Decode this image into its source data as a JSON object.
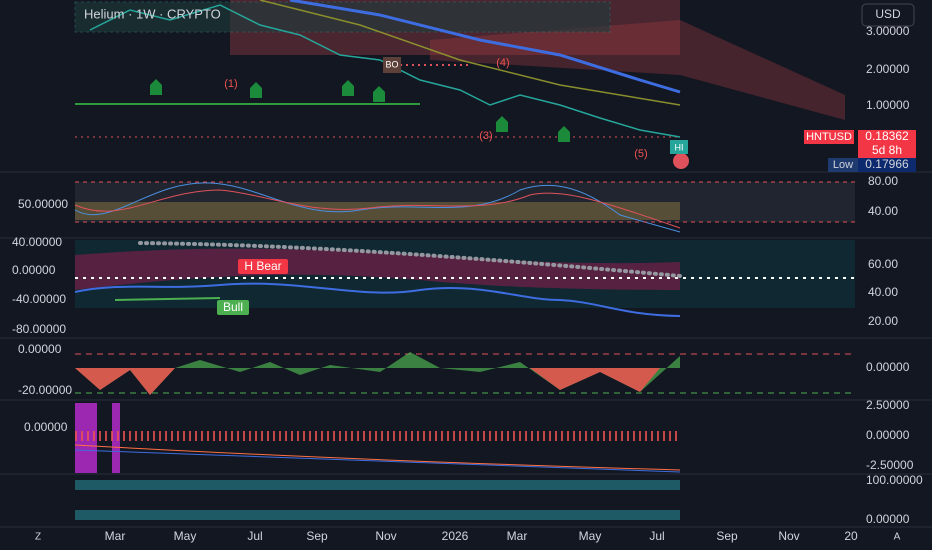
{
  "header": {
    "title": "Helium · 1W · CRYPTO",
    "currency": "USD"
  },
  "price_pane": {
    "axis_labels": [
      "3.00000",
      "2.00000",
      "1.00000"
    ],
    "annotations": [
      "(1)",
      "(3)",
      "(4)",
      "(5)",
      "BO",
      "HI"
    ],
    "ticker": "HNTUSD",
    "price": "0.18362",
    "countdown": "5d 8h",
    "low_label": "Low",
    "low": "0.17966"
  },
  "rsi_pane": {
    "left_labels": [
      "50.00000"
    ],
    "right_labels": [
      "80.00",
      "40.00"
    ]
  },
  "osc_pane": {
    "left_labels": [
      "40.00000",
      "0.00000",
      "-40.00000",
      "-80.00000"
    ],
    "right_labels": [
      "60.00",
      "40.00",
      "20.00"
    ],
    "badges": [
      "H Bear",
      "Bull"
    ]
  },
  "mom_pane": {
    "left_labels": [
      "0.00000",
      "-20.00000"
    ],
    "right_labels": [
      "0.00000"
    ]
  },
  "macd_pane": {
    "left_labels": [
      "0.00000"
    ],
    "right_labels": [
      "2.50000",
      "0.00000",
      "-2.50000"
    ]
  },
  "heat_pane": {
    "right_labels": [
      "100.00000",
      "0.00000"
    ]
  },
  "time_axis": [
    "Mar",
    "May",
    "Jul",
    "Sep",
    "Nov",
    "2026",
    "Mar",
    "May",
    "Jul",
    "Sep",
    "Nov",
    "20"
  ],
  "corner": {
    "left": "Z",
    "right": "A"
  }
}
